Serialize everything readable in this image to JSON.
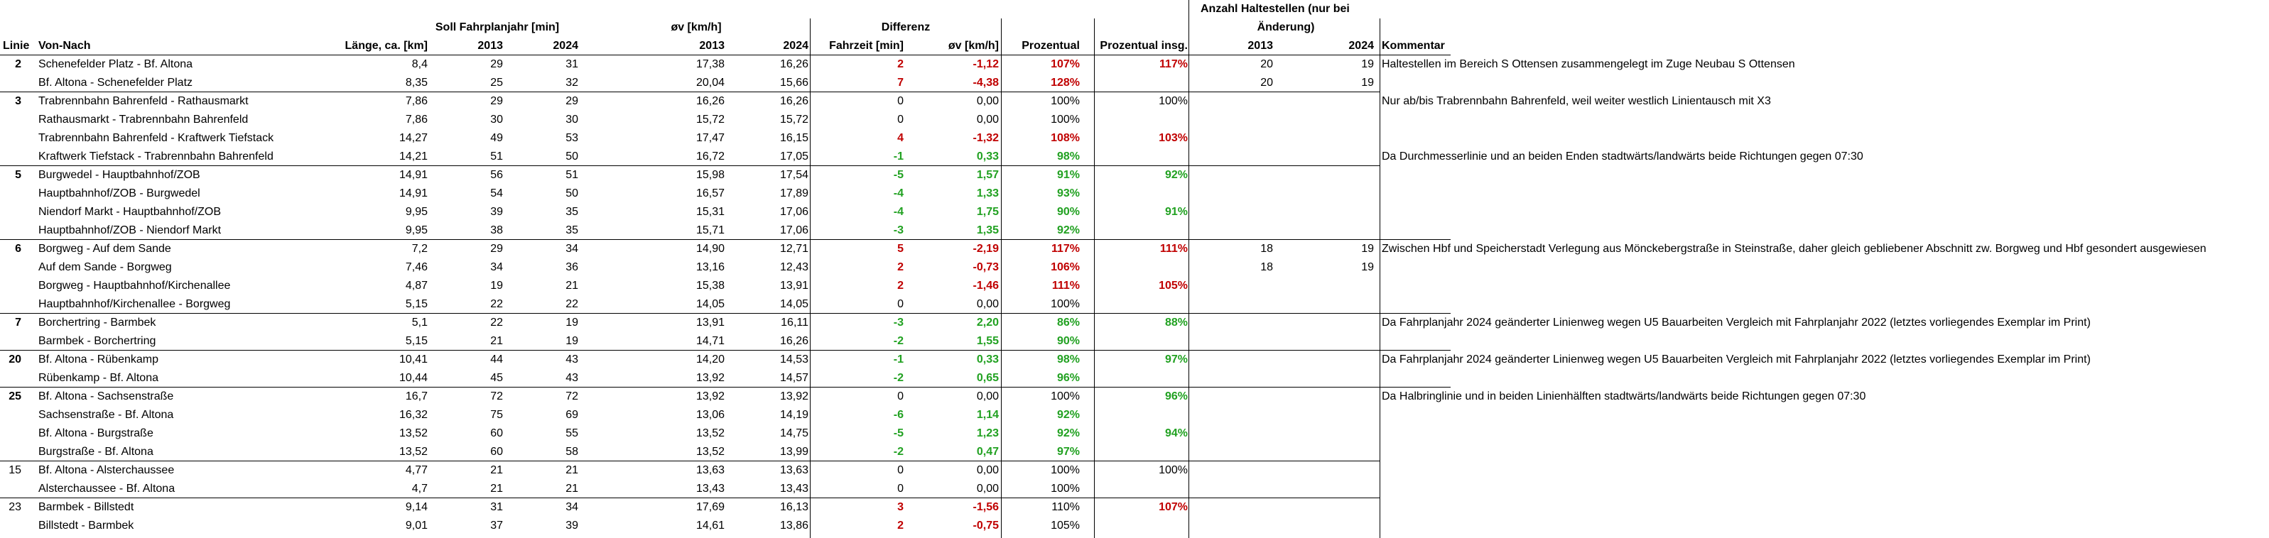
{
  "headers": {
    "linie": "Linie",
    "von_nach": "Von-Nach",
    "laenge": "Länge, ca. [km]",
    "soll": "Soll Fahrplanjahr [min]",
    "ov": "øv [km/h]",
    "differenz": "Differenz",
    "y2013": "2013",
    "y2024": "2024",
    "fahrzeit": "Fahrzeit [min]",
    "ovkmh": "øv [km/h]",
    "prozentual": "Prozentual",
    "prozentual_insg": "Prozentual insg.",
    "anzahl_line1": "Anzahl Haltestellen (nur bei",
    "anzahl_line2": "Änderung)",
    "kommentar": "Kommentar"
  },
  "rows": [
    {
      "linie": "2",
      "bold": true,
      "route": "Schenefelder Platz - Bf. Altona",
      "len": "8,4",
      "s13": "29",
      "s24": "31",
      "v13": "17,38",
      "v24": "16,26",
      "dt": "2",
      "dv": "-1,12",
      "pct": "107%",
      "pcti": "117%",
      "h13": "20",
      "h24": "19",
      "com": "Haltestellen im Bereich S Ottensen zusammengelegt im Zuge Neubau S Ottensen",
      "dtc": "red",
      "dvc": "red",
      "pctc": "red",
      "pctic": "red"
    },
    {
      "linie": "",
      "route": "Bf. Altona - Schenefelder Platz",
      "len": "8,35",
      "s13": "25",
      "s24": "32",
      "v13": "20,04",
      "v24": "15,66",
      "dt": "7",
      "dv": "-4,38",
      "pct": "128%",
      "pcti": "",
      "h13": "20",
      "h24": "19",
      "com": "",
      "dtc": "red",
      "dvc": "red",
      "pctc": "red"
    },
    {
      "linie": "3",
      "bold": true,
      "route": "Trabrennbahn Bahrenfeld - Rathausmarkt",
      "len": "7,86",
      "s13": "29",
      "s24": "29",
      "v13": "16,26",
      "v24": "16,26",
      "dt": "0",
      "dv": "0,00",
      "pct": "100%",
      "pcti": "100%",
      "h13": "",
      "h24": "",
      "com": "Nur ab/bis Trabrennbahn Bahrenfeld, weil weiter westlich Linientausch mit X3"
    },
    {
      "linie": "",
      "route": "Rathausmarkt - Trabrennbahn Bahrenfeld",
      "len": "7,86",
      "s13": "30",
      "s24": "30",
      "v13": "15,72",
      "v24": "15,72",
      "dt": "0",
      "dv": "0,00",
      "pct": "100%",
      "pcti": "",
      "h13": "",
      "h24": "",
      "com": ""
    },
    {
      "linie": "",
      "route": "Trabrennbahn Bahrenfeld - Kraftwerk Tiefstack",
      "len": "14,27",
      "s13": "49",
      "s24": "53",
      "v13": "17,47",
      "v24": "16,15",
      "dt": "4",
      "dv": "-1,32",
      "pct": "108%",
      "pcti": "103%",
      "h13": "",
      "h24": "",
      "com": "",
      "dtc": "red",
      "dvc": "red",
      "pctc": "red",
      "pctic": "red"
    },
    {
      "linie": "",
      "route": "Kraftwerk Tiefstack - Trabrennbahn Bahrenfeld",
      "len": "14,21",
      "s13": "51",
      "s24": "50",
      "v13": "16,72",
      "v24": "17,05",
      "dt": "-1",
      "dv": "0,33",
      "pct": "98%",
      "pcti": "",
      "h13": "",
      "h24": "",
      "com": "Da Durchmesserlinie und an beiden Enden stadtwärts/landwärts beide Richtungen gegen 07:30",
      "dtc": "green",
      "dvc": "green",
      "pctc": "green"
    },
    {
      "linie": "5",
      "bold": true,
      "route": "Burgwedel - Hauptbahnhof/ZOB",
      "len": "14,91",
      "s13": "56",
      "s24": "51",
      "v13": "15,98",
      "v24": "17,54",
      "dt": "-5",
      "dv": "1,57",
      "pct": "91%",
      "pcti": "92%",
      "h13": "",
      "h24": "",
      "com": "",
      "dtc": "green",
      "dvc": "green",
      "pctc": "green",
      "pctic": "green"
    },
    {
      "linie": "",
      "route": "Hauptbahnhof/ZOB - Burgwedel",
      "len": "14,91",
      "s13": "54",
      "s24": "50",
      "v13": "16,57",
      "v24": "17,89",
      "dt": "-4",
      "dv": "1,33",
      "pct": "93%",
      "pcti": "",
      "h13": "",
      "h24": "",
      "com": "",
      "dtc": "green",
      "dvc": "green",
      "pctc": "green"
    },
    {
      "linie": "",
      "route": "Niendorf Markt - Hauptbahnhof/ZOB",
      "len": "9,95",
      "s13": "39",
      "s24": "35",
      "v13": "15,31",
      "v24": "17,06",
      "dt": "-4",
      "dv": "1,75",
      "pct": "90%",
      "pcti": "91%",
      "h13": "",
      "h24": "",
      "com": "",
      "dtc": "green",
      "dvc": "green",
      "pctc": "green",
      "pctic": "green"
    },
    {
      "linie": "",
      "route": "Hauptbahnhof/ZOB - Niendorf Markt",
      "len": "9,95",
      "s13": "38",
      "s24": "35",
      "v13": "15,71",
      "v24": "17,06",
      "dt": "-3",
      "dv": "1,35",
      "pct": "92%",
      "pcti": "",
      "h13": "",
      "h24": "",
      "com": "",
      "dtc": "green",
      "dvc": "green",
      "pctc": "green"
    },
    {
      "linie": "6",
      "bold": true,
      "route": "Borgweg - Auf dem Sande",
      "len": "7,2",
      "s13": "29",
      "s24": "34",
      "v13": "14,90",
      "v24": "12,71",
      "dt": "5",
      "dv": "-2,19",
      "pct": "117%",
      "pcti": "111%",
      "h13": "18",
      "h24": "19",
      "com": "Zwischen Hbf und Speicherstadt Verlegung aus Mönckebergstraße in Steinstraße, daher gleich gebliebener Abschnitt zw. Borgweg und Hbf gesondert ausgewiesen",
      "dtc": "red",
      "dvc": "red",
      "pctc": "red",
      "pctic": "red"
    },
    {
      "linie": "",
      "route": "Auf dem Sande - Borgweg",
      "len": "7,46",
      "s13": "34",
      "s24": "36",
      "v13": "13,16",
      "v24": "12,43",
      "dt": "2",
      "dv": "-0,73",
      "pct": "106%",
      "pcti": "",
      "h13": "18",
      "h24": "19",
      "com": "",
      "dtc": "red",
      "dvc": "red",
      "pctc": "red"
    },
    {
      "linie": "",
      "route": "Borgweg - Hauptbahnhof/Kirchenallee",
      "len": "4,87",
      "s13": "19",
      "s24": "21",
      "v13": "15,38",
      "v24": "13,91",
      "dt": "2",
      "dv": "-1,46",
      "pct": "111%",
      "pcti": "105%",
      "h13": "",
      "h24": "",
      "com": "",
      "dtc": "red",
      "dvc": "red",
      "pctc": "red",
      "pctic": "red"
    },
    {
      "linie": "",
      "route": "Hauptbahnhof/Kirchenallee - Borgweg",
      "len": "5,15",
      "s13": "22",
      "s24": "22",
      "v13": "14,05",
      "v24": "14,05",
      "dt": "0",
      "dv": "0,00",
      "pct": "100%",
      "pcti": "",
      "h13": "",
      "h24": "",
      "com": ""
    },
    {
      "linie": "7",
      "bold": true,
      "route": "Borchertring - Barmbek",
      "len": "5,1",
      "s13": "22",
      "s24": "19",
      "v13": "13,91",
      "v24": "16,11",
      "dt": "-3",
      "dv": "2,20",
      "pct": "86%",
      "pcti": "88%",
      "h13": "",
      "h24": "",
      "com": "Da Fahrplanjahr 2024 geänderter Linienweg wegen U5 Bauarbeiten Vergleich mit Fahrplanjahr 2022 (letztes vorliegendes Exemplar im Print)",
      "dtc": "green",
      "dvc": "green",
      "pctc": "green",
      "pctic": "green"
    },
    {
      "linie": "",
      "route": "Barmbek - Borchertring",
      "len": "5,15",
      "s13": "21",
      "s24": "19",
      "v13": "14,71",
      "v24": "16,26",
      "dt": "-2",
      "dv": "1,55",
      "pct": "90%",
      "pcti": "",
      "h13": "",
      "h24": "",
      "com": "",
      "dtc": "green",
      "dvc": "green",
      "pctc": "green"
    },
    {
      "linie": "20",
      "bold": true,
      "route": "Bf. Altona - Rübenkamp",
      "len": "10,41",
      "s13": "44",
      "s24": "43",
      "v13": "14,20",
      "v24": "14,53",
      "dt": "-1",
      "dv": "0,33",
      "pct": "98%",
      "pcti": "97%",
      "h13": "",
      "h24": "",
      "com": "Da Fahrplanjahr 2024 geänderter Linienweg wegen U5 Bauarbeiten Vergleich mit Fahrplanjahr 2022 (letztes vorliegendes Exemplar im Print)",
      "dtc": "green",
      "dvc": "green",
      "pctc": "green",
      "pctic": "green"
    },
    {
      "linie": "",
      "route": "Rübenkamp - Bf. Altona",
      "len": "10,44",
      "s13": "45",
      "s24": "43",
      "v13": "13,92",
      "v24": "14,57",
      "dt": "-2",
      "dv": "0,65",
      "pct": "96%",
      "pcti": "",
      "h13": "",
      "h24": "",
      "com": "",
      "dtc": "green",
      "dvc": "green",
      "pctc": "green"
    },
    {
      "linie": "25",
      "bold": true,
      "route": "Bf. Altona - Sachsenstraße",
      "len": "16,7",
      "s13": "72",
      "s24": "72",
      "v13": "13,92",
      "v24": "13,92",
      "dt": "0",
      "dv": "0,00",
      "pct": "100%",
      "pcti": "96%",
      "h13": "",
      "h24": "",
      "com": "Da Halbringlinie und in beiden Linienhälften stadtwärts/landwärts beide Richtungen gegen 07:30",
      "pctic": "green"
    },
    {
      "linie": "",
      "route": "Sachsenstraße - Bf. Altona",
      "len": "16,32",
      "s13": "75",
      "s24": "69",
      "v13": "13,06",
      "v24": "14,19",
      "dt": "-6",
      "dv": "1,14",
      "pct": "92%",
      "pcti": "",
      "h13": "",
      "h24": "",
      "com": "",
      "dtc": "green",
      "dvc": "green",
      "pctc": "green"
    },
    {
      "linie": "",
      "route": "Bf. Altona - Burgstraße",
      "len": "13,52",
      "s13": "60",
      "s24": "55",
      "v13": "13,52",
      "v24": "14,75",
      "dt": "-5",
      "dv": "1,23",
      "pct": "92%",
      "pcti": "94%",
      "h13": "",
      "h24": "",
      "com": "",
      "dtc": "green",
      "dvc": "green",
      "pctc": "green",
      "pctic": "green"
    },
    {
      "linie": "",
      "route": "Burgstraße - Bf. Altona",
      "len": "13,52",
      "s13": "60",
      "s24": "58",
      "v13": "13,52",
      "v24": "13,99",
      "dt": "-2",
      "dv": "0,47",
      "pct": "97%",
      "pcti": "",
      "h13": "",
      "h24": "",
      "com": "",
      "dtc": "green",
      "dvc": "green",
      "pctc": "green"
    },
    {
      "linie": "15",
      "bold": false,
      "route": "Bf. Altona - Alsterchaussee",
      "len": "4,77",
      "s13": "21",
      "s24": "21",
      "v13": "13,63",
      "v24": "13,63",
      "dt": "0",
      "dv": "0,00",
      "pct": "100%",
      "pcti": "100%",
      "h13": "",
      "h24": "",
      "com": ""
    },
    {
      "linie": "",
      "route": "Alsterchaussee - Bf. Altona",
      "len": "4,7",
      "s13": "21",
      "s24": "21",
      "v13": "13,43",
      "v24": "13,43",
      "dt": "0",
      "dv": "0,00",
      "pct": "100%",
      "pcti": "",
      "h13": "",
      "h24": "",
      "com": ""
    },
    {
      "linie": "23",
      "bold": false,
      "route": "Barmbek - Billstedt",
      "len": "9,14",
      "s13": "31",
      "s24": "34",
      "v13": "17,69",
      "v24": "16,13",
      "dt": "3",
      "dv": "-1,56",
      "pct": "110%",
      "pcti": "107%",
      "h13": "",
      "h24": "",
      "com": "",
      "dtc": "red",
      "dvc": "red",
      "pctic": "red"
    },
    {
      "linie": "",
      "route": "Billstedt - Barmbek",
      "len": "9,01",
      "s13": "37",
      "s24": "39",
      "v13": "14,61",
      "v24": "13,86",
      "dt": "2",
      "dv": "-0,75",
      "pct": "105%",
      "pcti": "",
      "h13": "",
      "h24": "",
      "com": "",
      "dtc": "red",
      "dvc": "red"
    }
  ]
}
